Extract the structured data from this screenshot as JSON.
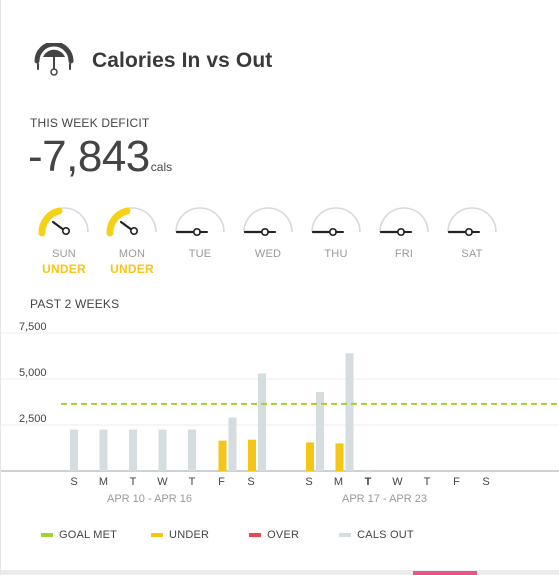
{
  "header": {
    "title": "Calories In vs Out",
    "icon": "scale-gauge-icon"
  },
  "week": {
    "deficit_label": "THIS WEEK DEFICIT",
    "deficit_value": "-7,843",
    "deficit_unit": "cals",
    "days": [
      {
        "name": "SUN",
        "status": "UNDER",
        "active": true
      },
      {
        "name": "MON",
        "status": "UNDER",
        "active": true
      },
      {
        "name": "TUE",
        "status": "",
        "active": false
      },
      {
        "name": "WED",
        "status": "",
        "active": false
      },
      {
        "name": "THU",
        "status": "",
        "active": false
      },
      {
        "name": "FRI",
        "status": "",
        "active": false
      },
      {
        "name": "SAT",
        "status": "",
        "active": false
      }
    ]
  },
  "past": {
    "label": "PAST 2 WEEKS"
  },
  "colors": {
    "goal_met": "#a6d12a",
    "under": "#f5c518",
    "over": "#e84b4b",
    "cals_out": "#d5dde0",
    "gauge_track": "#d9d9d9",
    "gauge_active": "#f5d215"
  },
  "chart_data": {
    "type": "bar",
    "y_ticks": [
      2500,
      5000,
      7500
    ],
    "y_tick_labels": [
      "2,500",
      "5,000",
      "7,500"
    ],
    "ylim": [
      0,
      7500
    ],
    "goal_line": 3650,
    "weeks": [
      {
        "range": "APR 10 - APR 16",
        "days": [
          "S",
          "M",
          "T",
          "W",
          "T",
          "F",
          "S"
        ],
        "under": [
          0,
          0,
          0,
          0,
          0,
          1650,
          1700
        ],
        "cals_out": [
          2250,
          2250,
          2250,
          2250,
          2250,
          2900,
          5300
        ]
      },
      {
        "range": "APR 17 - APR 23",
        "days": [
          "S",
          "M",
          "T",
          "W",
          "T",
          "F",
          "S"
        ],
        "under": [
          1550,
          1500,
          0,
          0,
          0,
          0,
          0
        ],
        "cals_out": [
          4300,
          6400,
          60,
          0,
          0,
          0,
          0
        ]
      }
    ],
    "legend": [
      {
        "label": "GOAL MET",
        "color_key": "goal_met"
      },
      {
        "label": "UNDER",
        "color_key": "under"
      },
      {
        "label": "OVER",
        "color_key": "over"
      },
      {
        "label": "CALS OUT",
        "color_key": "cals_out"
      }
    ]
  }
}
